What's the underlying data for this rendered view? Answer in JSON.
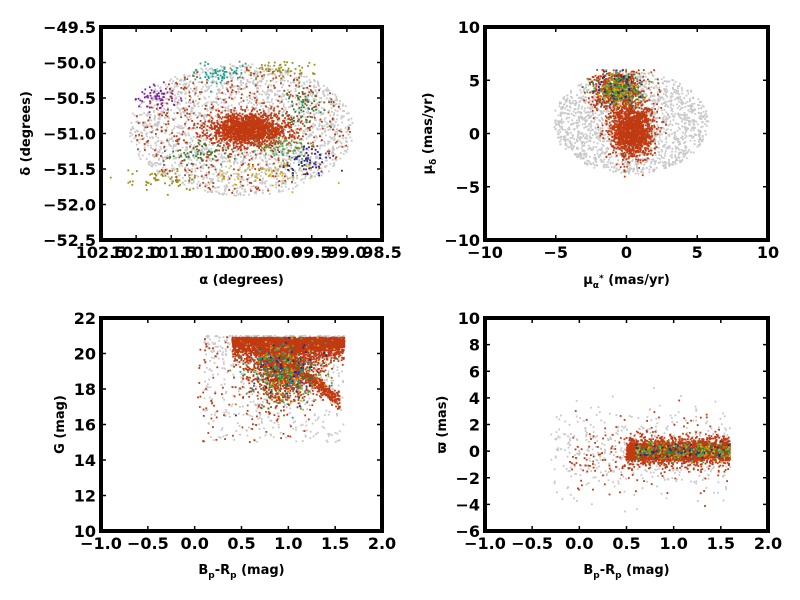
{
  "colors": {
    "background_stars": "#c8c8c8",
    "cluster_main": "#c03a12",
    "accents": [
      "#2e7d32",
      "#1a9f8f",
      "#9a8f14",
      "#7a1fa2",
      "#1b2a8f",
      "#c9b41c",
      "#4caf50"
    ]
  },
  "chart_data": [
    {
      "type": "scatter",
      "panel": "sky-position",
      "xlabel": "α (degrees)",
      "ylabel": "δ (degrees)",
      "xlim": [
        102.5,
        98.5
      ],
      "ylim": [
        -52.5,
        -49.5
      ],
      "xticks": [
        102.5,
        102.0,
        101.5,
        101.0,
        100.5,
        100.0,
        99.5,
        99.0,
        98.5
      ],
      "xtick_labels": [
        "102.5",
        "102.0",
        "101.5",
        "101.0",
        "100.5",
        "100.0",
        "99.5",
        "99.0",
        "98.5"
      ],
      "yticks": [
        -49.5,
        -50.0,
        -50.5,
        -51.0,
        -51.5,
        -52.0,
        -52.5
      ],
      "ytick_labels": [
        "−49.5",
        "−50.0",
        "−50.5",
        "−51.0",
        "−51.5",
        "−52.0",
        "−52.5"
      ],
      "field_center": [
        100.5,
        -50.95
      ],
      "cluster_center": [
        100.4,
        -50.95
      ]
    },
    {
      "type": "scatter",
      "panel": "proper-motion",
      "xlabel": "μα* (mas/yr)",
      "ylabel": "μδ (mas/yr)",
      "xlim": [
        -10,
        10
      ],
      "ylim": [
        -10,
        10
      ],
      "xticks": [
        -10,
        -5,
        0,
        5,
        10
      ],
      "xtick_labels": [
        "−10",
        "−5",
        "0",
        "5",
        "10"
      ],
      "yticks": [
        10,
        5,
        0,
        -5,
        -10
      ],
      "ytick_labels": [
        "10",
        "5",
        "0",
        "−5",
        "−10"
      ]
    },
    {
      "type": "scatter",
      "panel": "color-magnitude",
      "xlabel": "Bp-Rp (mag)",
      "ylabel": "G (mag)",
      "xlim": [
        -1.0,
        2.0
      ],
      "ylim": [
        10,
        22
      ],
      "xticks": [
        -1.0,
        -0.5,
        0.0,
        0.5,
        1.0,
        1.5,
        2.0
      ],
      "xtick_labels": [
        "−1.0",
        "−0.5",
        "0.0",
        "0.5",
        "1.0",
        "1.5",
        "2.0"
      ],
      "yticks": [
        22,
        20,
        18,
        16,
        14,
        12,
        10
      ],
      "ytick_labels": [
        "22",
        "20",
        "18",
        "16",
        "14",
        "12",
        "10"
      ]
    },
    {
      "type": "scatter",
      "panel": "color-parallax",
      "xlabel": "Bp-Rp (mag)",
      "ylabel": "ϖ (mas)",
      "xlim": [
        -1.0,
        2.0
      ],
      "ylim": [
        -6,
        10
      ],
      "xticks": [
        -1.0,
        -0.5,
        0.0,
        0.5,
        1.0,
        1.5,
        2.0
      ],
      "xtick_labels": [
        "−1.0",
        "−0.5",
        "0.0",
        "0.5",
        "1.0",
        "1.5",
        "2.0"
      ],
      "yticks": [
        10,
        8,
        6,
        4,
        2,
        0,
        -2,
        -4,
        -6
      ],
      "ytick_labels": [
        "10",
        "8",
        "6",
        "4",
        "2",
        "0",
        "−2",
        "−4",
        "−6"
      ]
    }
  ]
}
